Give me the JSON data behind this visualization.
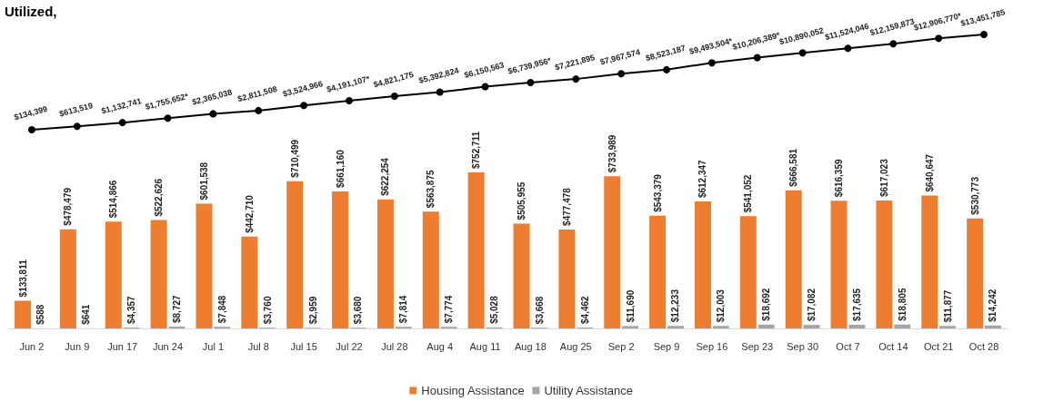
{
  "chart_data": [
    {
      "type": "line",
      "title": "Utilized,",
      "tick_labels": false,
      "marker": "circle",
      "line_style": "solid",
      "categories": [
        null,
        null,
        null,
        null,
        null,
        null,
        null,
        null,
        null,
        null,
        null,
        null,
        null,
        null,
        null,
        null,
        null,
        null,
        null,
        null,
        null,
        null
      ],
      "series": [
        {
          "color": "#000000",
          "values": [
            134399,
            613519,
            1132741,
            1755652,
            2365038,
            2811508,
            3524966,
            4191107,
            4821175,
            5392824,
            6150563,
            6739956,
            7221895,
            7967574,
            8523187,
            9493504,
            10206389,
            10890052,
            11524046,
            12159873,
            12906770,
            13451785
          ],
          "value_labels": [
            "$134,399",
            "$613,519",
            "$1,132,741",
            "$1,755,652*",
            "$2,365,038",
            "$2,811,508",
            "$3,524,966",
            "$4,191,107*",
            "$4,821,175",
            "$5,392,824",
            "$6,150,563",
            "$6,739,956*",
            "$7,221,895",
            "$7,967,574",
            "$8,523,187",
            "$9,493,504*",
            "$10,206,389*",
            "$10,890,052",
            "$11,524,046",
            "$12,159,873",
            "$12,906,770*",
            "$13,451,785"
          ]
        }
      ]
    },
    {
      "type": "bar",
      "tick_labels": "x",
      "legend": "bottom",
      "categories": [
        "Jun 2",
        "Jun 9",
        "Jun 17",
        "Jun 24",
        "Jul 1",
        "Jul 8",
        "Jul 15",
        "Jul 22",
        "Jul 28",
        "Aug 4",
        "Aug 11",
        "Aug 18",
        "Aug 25",
        "Sep 2",
        "Sep 9",
        "Sep 16",
        "Sep 23",
        "Sep 30",
        "Oct 7",
        "Oct 14",
        "Oct 21",
        "Oct 28"
      ],
      "series": [
        {
          "name": "Housing Assistance",
          "color": "#ed7d31",
          "values": [
            133811,
            478479,
            514866,
            522626,
            601538,
            442710,
            710499,
            661160,
            622254,
            563875,
            752711,
            505955,
            477478,
            733989,
            543379,
            612347,
            541052,
            666581,
            616359,
            617023,
            640647,
            530773
          ],
          "value_labels": [
            "$133,811",
            "$478,479",
            "$514,866",
            "$522,626",
            "$601,538",
            "$442,710",
            "$710,499",
            "$661,160",
            "$622,254",
            "$563,875",
            "$752,711",
            "$505,955",
            "$477,478",
            "$733,989",
            "$543,379",
            "$612,347",
            "$541,052",
            "$666,581",
            "$616,359",
            "$617,023",
            "$640,647",
            "$530,773"
          ]
        },
        {
          "name": "Utility Assistance",
          "color": "#a5a5a5",
          "values": [
            588,
            641,
            4357,
            8727,
            7848,
            3760,
            2959,
            3680,
            7814,
            7774,
            5028,
            3668,
            4462,
            11690,
            12233,
            12003,
            18692,
            17082,
            17635,
            18805,
            11877,
            14242
          ],
          "value_labels": [
            "$588",
            "$641",
            "$4,357",
            "$8,727",
            "$7,848",
            "$3,760",
            "$2,959",
            "$3,680",
            "$7,814",
            "$7,774",
            "$5,028",
            "$3,668",
            "$4,462",
            "$11,690",
            "$12,233",
            "$12,003",
            "$18,692",
            "$17,082",
            "$17,635",
            "$18,805",
            "$11,877",
            "$14,242"
          ]
        }
      ]
    }
  ]
}
